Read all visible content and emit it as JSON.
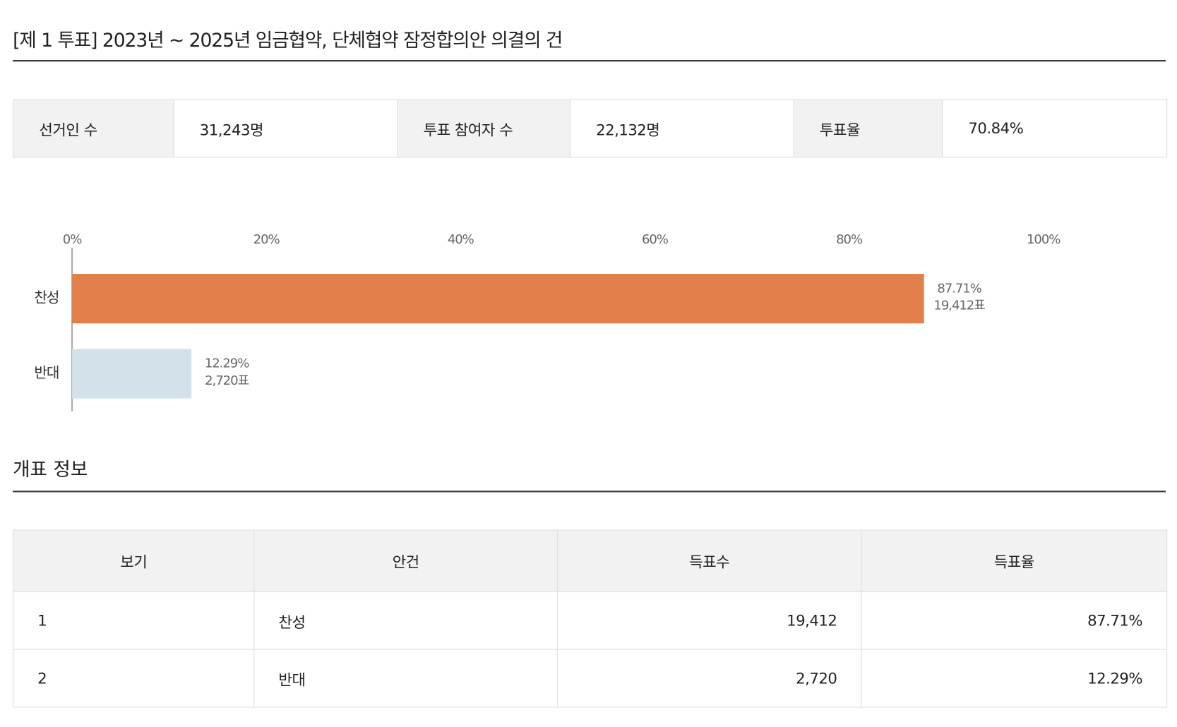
{
  "header": {
    "title": "[제 1 투표] 2023년 ~ 2025년 임금협약, 단체협약 잠정합의안 의결의 건"
  },
  "summary": {
    "cells": [
      [
        "선거인 수",
        "31,243명"
      ],
      [
        "투표 참여자 수",
        "22,132명"
      ],
      [
        "투표율",
        "70.84%"
      ]
    ]
  },
  "chart_data": {
    "type": "bar",
    "orientation": "horizontal",
    "categories": [
      "찬성",
      "반대"
    ],
    "values": [
      87.71,
      12.29
    ],
    "value_labels": [
      "87.71%",
      "12.29%"
    ],
    "vote_labels": [
      "19,412표",
      "2,720표"
    ],
    "colors": [
      "#e37f4a",
      "#d2e1ea"
    ],
    "xlim": [
      0,
      100
    ],
    "xticks": [
      {
        "value": 0,
        "label": "0%"
      },
      {
        "value": 20,
        "label": "20%"
      },
      {
        "value": 40,
        "label": "40%"
      },
      {
        "value": 60,
        "label": "60%"
      },
      {
        "value": 80,
        "label": "80%"
      },
      {
        "value": 100,
        "label": "100%"
      }
    ]
  },
  "section": {
    "title": "개표 정보"
  },
  "table": {
    "columns": [
      "보기",
      "안건",
      "득표수",
      "득표율"
    ],
    "rows": [
      [
        "1",
        "찬성",
        "19,412",
        "87.71%"
      ],
      [
        "2",
        "반대",
        "2,720",
        "12.29%"
      ]
    ]
  }
}
